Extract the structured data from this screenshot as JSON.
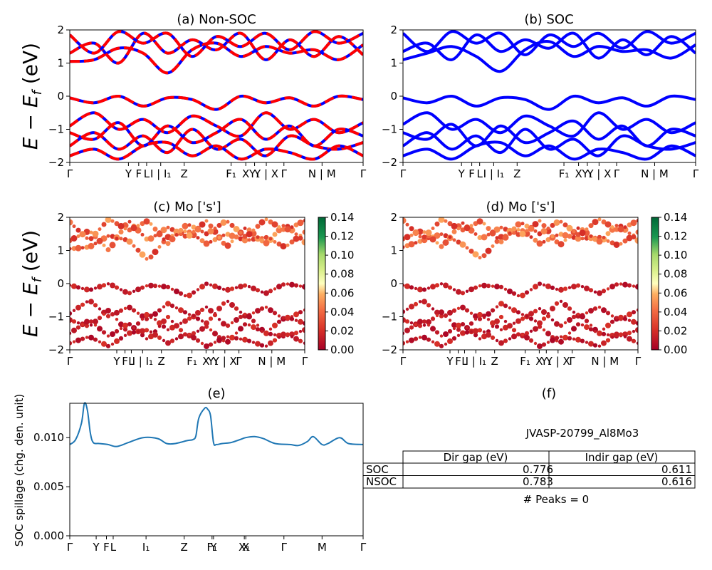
{
  "figure_id": "JVASP-20799_Al8Mo3",
  "chart_data": [
    {
      "panel": "a",
      "type": "line",
      "title": "(a) Non-SOC",
      "ylabel": "E − E_f (eV)",
      "ylim": [
        -2,
        2
      ],
      "yticks": [
        "2",
        "1",
        "0",
        "−1",
        "−2"
      ],
      "xticks": [
        "Γ",
        "Y",
        "F",
        "L",
        "I | I₁",
        "Z",
        "F₁",
        "X",
        "Y₁",
        "Y | X",
        "Γ",
        "N | M",
        "Γ"
      ],
      "xtick_pos": [
        0,
        0.2,
        0.235,
        0.262,
        0.31,
        0.39,
        0.55,
        0.6,
        0.63,
        0.67,
        0.73,
        0.86,
        1.0
      ],
      "series": [
        {
          "style": "red-blue-dashed",
          "values": [
            1.05,
            1.1,
            1.45,
            1.3,
            0.7,
            1.4,
            1.6,
            1.2,
            1.5,
            1.3,
            1.4,
            1.1,
            1.55
          ]
        },
        {
          "style": "red-blue-dashed",
          "values": [
            1.3,
            1.6,
            1.0,
            1.9,
            1.3,
            1.7,
            1.4,
            1.9,
            1.1,
            1.7,
            1.2,
            1.8,
            1.25
          ]
        },
        {
          "style": "red-blue-dashed",
          "values": [
            1.85,
            1.3,
            1.95,
            1.6,
            1.9,
            1.2,
            1.8,
            1.5,
            1.9,
            1.4,
            1.95,
            1.6,
            1.9
          ]
        },
        {
          "style": "red-blue-dashed",
          "values": [
            -0.05,
            -0.2,
            -0.0,
            -0.3,
            -0.05,
            -0.1,
            -0.4,
            0.0,
            -0.2,
            -0.05,
            -0.3,
            0.0,
            -0.1
          ]
        },
        {
          "style": "red-blue-dashed",
          "values": [
            -0.9,
            -0.5,
            -1.0,
            -0.7,
            -1.1,
            -0.6,
            -0.9,
            -1.2,
            -0.5,
            -1.0,
            -0.7,
            -1.1,
            -0.8
          ]
        },
        {
          "style": "red-blue-dashed",
          "values": [
            -1.1,
            -1.3,
            -0.8,
            -1.5,
            -0.9,
            -1.4,
            -1.1,
            -0.7,
            -1.3,
            -0.9,
            -1.5,
            -1.0,
            -1.2
          ]
        },
        {
          "style": "red-blue-dashed",
          "values": [
            -1.5,
            -1.1,
            -1.6,
            -1.2,
            -1.7,
            -1.0,
            -1.6,
            -1.3,
            -1.8,
            -1.2,
            -1.5,
            -1.6,
            -1.4
          ]
        },
        {
          "style": "red-blue-dashed",
          "values": [
            -1.8,
            -1.6,
            -1.9,
            -1.5,
            -1.4,
            -1.8,
            -1.5,
            -1.9,
            -1.6,
            -1.7,
            -1.9,
            -1.5,
            -1.8
          ]
        }
      ]
    },
    {
      "panel": "b",
      "type": "line",
      "title": "(b) SOC",
      "ylim": [
        -2,
        2
      ],
      "yticks": [
        "2",
        "1",
        "0",
        "−1",
        "−2"
      ],
      "xticks": [
        "Γ",
        "Y",
        "F",
        "L",
        "I | I₁",
        "Z",
        "F₁",
        "X",
        "Y₁",
        "Y | X",
        "Γ",
        "N | M",
        "Γ"
      ],
      "xtick_pos": [
        0,
        0.2,
        0.235,
        0.262,
        0.31,
        0.39,
        0.55,
        0.6,
        0.63,
        0.67,
        0.73,
        0.86,
        1.0
      ],
      "series": [
        {
          "style": "blue",
          "values": [
            1.1,
            1.3,
            1.5,
            1.2,
            0.75,
            1.4,
            1.65,
            1.2,
            1.5,
            1.35,
            1.4,
            1.15,
            1.55
          ]
        },
        {
          "style": "blue",
          "values": [
            1.35,
            1.6,
            1.1,
            1.85,
            1.35,
            1.7,
            1.45,
            1.9,
            1.15,
            1.7,
            1.25,
            1.8,
            1.3
          ]
        },
        {
          "style": "blue",
          "values": [
            1.9,
            1.35,
            1.95,
            1.6,
            1.9,
            1.25,
            1.85,
            1.5,
            1.9,
            1.45,
            1.95,
            1.6,
            1.9
          ]
        },
        {
          "style": "blue",
          "values": [
            -0.05,
            -0.2,
            -0.0,
            -0.3,
            -0.05,
            -0.1,
            -0.4,
            0.0,
            -0.2,
            -0.05,
            -0.3,
            0.0,
            -0.1
          ]
        },
        {
          "style": "blue",
          "values": [
            -0.85,
            -0.5,
            -1.0,
            -0.7,
            -1.1,
            -0.6,
            -0.9,
            -1.2,
            -0.5,
            -1.0,
            -0.7,
            -1.1,
            -0.8
          ]
        },
        {
          "style": "blue",
          "values": [
            -1.1,
            -1.3,
            -0.85,
            -1.5,
            -0.9,
            -1.4,
            -1.1,
            -0.75,
            -1.3,
            -0.9,
            -1.5,
            -1.0,
            -1.2
          ]
        },
        {
          "style": "blue",
          "values": [
            -1.5,
            -1.1,
            -1.6,
            -1.2,
            -1.7,
            -1.0,
            -1.6,
            -1.3,
            -1.8,
            -1.2,
            -1.5,
            -1.6,
            -1.4
          ]
        },
        {
          "style": "blue",
          "values": [
            -1.8,
            -1.6,
            -1.9,
            -1.5,
            -1.4,
            -1.8,
            -1.5,
            -1.9,
            -1.6,
            -1.7,
            -1.9,
            -1.5,
            -1.8
          ]
        }
      ]
    },
    {
      "panel": "c",
      "type": "scatter",
      "title": "(c)  Mo ['s']",
      "ylabel": "E − E_f (eV)",
      "ylim": [
        -2,
        2
      ],
      "yticks": [
        "2",
        "1",
        "0",
        "−1",
        "−2"
      ],
      "xticks": [
        "Γ",
        "Y",
        "F",
        "L",
        "I | I₁",
        "Z",
        "F₁",
        "X",
        "Y₁",
        "Y | X",
        "Γ",
        "N | M",
        "Γ"
      ],
      "xtick_pos": [
        0,
        0.2,
        0.235,
        0.262,
        0.31,
        0.39,
        0.52,
        0.58,
        0.61,
        0.66,
        0.72,
        0.86,
        1.0
      ],
      "colorbar": {
        "min": 0.0,
        "max": 0.14,
        "ticks": [
          "0.14",
          "0.12",
          "0.10",
          "0.08",
          "0.06",
          "0.04",
          "0.02",
          "0.00"
        ],
        "cmap": "RdYlGn"
      }
    },
    {
      "panel": "d",
      "type": "scatter",
      "title": "(d) Mo ['s']",
      "ylim": [
        -2,
        2
      ],
      "yticks": [
        "2",
        "1",
        "0",
        "−1",
        "−2"
      ],
      "xticks": [
        "Γ",
        "Y",
        "F",
        "L",
        "I | I₁",
        "Z",
        "F₁",
        "X",
        "Y₁",
        "Y | X",
        "Γ",
        "N | M",
        "Γ"
      ],
      "xtick_pos": [
        0,
        0.2,
        0.235,
        0.262,
        0.31,
        0.39,
        0.52,
        0.58,
        0.61,
        0.66,
        0.72,
        0.86,
        1.0
      ],
      "colorbar": {
        "min": 0.0,
        "max": 0.14,
        "ticks": [
          "0.14",
          "0.12",
          "0.10",
          "0.08",
          "0.06",
          "0.04",
          "0.02",
          "0.00"
        ],
        "cmap": "RdYlGn"
      }
    },
    {
      "panel": "e",
      "type": "line",
      "title": "(e)",
      "ylabel": "SOC spillage (chg. den. unit)",
      "ylim": [
        0,
        0.0135
      ],
      "yticks": [
        "0.000",
        "0.005",
        "0.010"
      ],
      "ytick_vals": [
        0,
        0.005,
        0.01
      ],
      "xticks": [
        "Γ",
        "Y",
        "F",
        "L",
        "I₁",
        "Z",
        "F₁",
        "Y",
        "X₁",
        "X",
        "Γ",
        "M",
        "Γ"
      ],
      "xtick_pos": [
        0,
        0.09,
        0.125,
        0.148,
        0.26,
        0.39,
        0.485,
        0.49,
        0.595,
        0.6,
        0.73,
        0.86,
        1.0
      ],
      "x": [
        0,
        0.02,
        0.04,
        0.05,
        0.06,
        0.07,
        0.08,
        0.1,
        0.13,
        0.16,
        0.2,
        0.25,
        0.3,
        0.33,
        0.36,
        0.4,
        0.42,
        0.43,
        0.44,
        0.46,
        0.47,
        0.48,
        0.49,
        0.5,
        0.52,
        0.55,
        0.58,
        0.6,
        0.63,
        0.66,
        0.7,
        0.75,
        0.78,
        0.81,
        0.83,
        0.86,
        0.88,
        0.92,
        0.95,
        1.0
      ],
      "values": [
        0.0093,
        0.0098,
        0.0115,
        0.0135,
        0.0128,
        0.0105,
        0.0095,
        0.0094,
        0.0093,
        0.0091,
        0.0095,
        0.01,
        0.0099,
        0.0094,
        0.0094,
        0.0097,
        0.0098,
        0.0102,
        0.012,
        0.013,
        0.0129,
        0.0122,
        0.0095,
        0.0093,
        0.0094,
        0.0095,
        0.0098,
        0.01,
        0.0101,
        0.0099,
        0.0094,
        0.0093,
        0.0092,
        0.0096,
        0.0101,
        0.0093,
        0.0094,
        0.01,
        0.0094,
        0.0093
      ],
      "color": "#1f77b4"
    }
  ],
  "table": {
    "title": "(f)",
    "id": "JVASP-20799_Al8Mo3",
    "header": [
      "",
      "Dir gap (eV)",
      "Indir gap (eV)"
    ],
    "rows": [
      [
        "SOC",
        "0.776",
        "0.611"
      ],
      [
        "NSOC",
        "0.783",
        "0.616"
      ]
    ],
    "peaks": "# Peaks = 0"
  }
}
